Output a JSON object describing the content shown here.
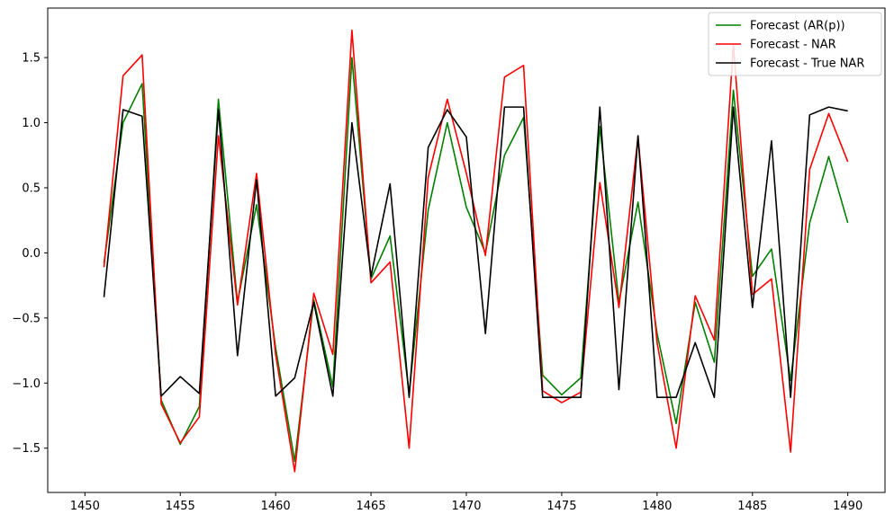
{
  "chart_data": {
    "type": "line",
    "title": "",
    "xlabel": "",
    "ylabel": "",
    "xlim": [
      1448.05,
      1491.95
    ],
    "ylim": [
      -1.84,
      1.88
    ],
    "xticks": [
      1450,
      1455,
      1460,
      1465,
      1470,
      1475,
      1480,
      1485,
      1490
    ],
    "yticks": [
      -1.5,
      -1.0,
      -0.5,
      0.0,
      0.5,
      1.0,
      1.5
    ],
    "ytick_labels": [
      "−1.5",
      "−1.0",
      "−0.5",
      "0.0",
      "0.5",
      "1.0",
      "1.5"
    ],
    "grid": false,
    "legend_position": "top-right",
    "x": [
      1451,
      1452,
      1453,
      1454,
      1455,
      1456,
      1457,
      1458,
      1459,
      1460,
      1461,
      1462,
      1463,
      1464,
      1465,
      1466,
      1467,
      1468,
      1469,
      1470,
      1471,
      1472,
      1473,
      1474,
      1475,
      1476,
      1477,
      1478,
      1479,
      1480,
      1481,
      1482,
      1483,
      1484,
      1485,
      1486,
      1487,
      1488,
      1489,
      1490
    ],
    "series": [
      {
        "name": "Forecast (AR(p))",
        "color": "#008000",
        "values": [
          -0.08,
          1.0,
          1.3,
          -1.13,
          -1.47,
          -1.18,
          1.18,
          -0.38,
          0.37,
          -0.73,
          -1.6,
          -0.36,
          -1.03,
          1.5,
          -0.2,
          0.13,
          -1.08,
          0.33,
          1.0,
          0.35,
          0.0,
          0.75,
          1.04,
          -0.94,
          -1.09,
          -0.96,
          0.97,
          -0.38,
          0.39,
          -0.62,
          -1.31,
          -0.38,
          -0.84,
          1.25,
          -0.18,
          0.03,
          -0.98,
          0.23,
          0.74,
          0.23
        ]
      },
      {
        "name": "Forecast - NAR",
        "color": "#ff0000",
        "values": [
          -0.11,
          1.36,
          1.52,
          -1.16,
          -1.46,
          -1.26,
          0.9,
          -0.4,
          0.61,
          -0.78,
          -1.68,
          -0.31,
          -0.78,
          1.71,
          -0.23,
          -0.07,
          -1.5,
          0.58,
          1.18,
          0.61,
          -0.02,
          1.35,
          1.44,
          -1.06,
          -1.15,
          -1.07,
          0.54,
          -0.42,
          0.89,
          -0.69,
          -1.5,
          -0.33,
          -0.67,
          1.6,
          -0.32,
          -0.2,
          -1.53,
          0.64,
          1.07,
          0.7
        ]
      },
      {
        "name": "Forecast - True NAR",
        "color": "#000000",
        "values": [
          -0.34,
          1.1,
          1.05,
          -1.1,
          -0.95,
          -1.08,
          1.1,
          -0.79,
          0.56,
          -1.1,
          -0.96,
          -0.38,
          -1.1,
          1.0,
          -0.18,
          0.53,
          -1.11,
          0.81,
          1.1,
          0.89,
          -0.62,
          1.12,
          1.12,
          -1.11,
          -1.11,
          -1.11,
          1.12,
          -1.05,
          0.9,
          -1.11,
          -1.11,
          -0.69,
          -1.11,
          1.12,
          -0.42,
          0.86,
          -1.11,
          1.06,
          1.12,
          1.09
        ]
      }
    ]
  }
}
